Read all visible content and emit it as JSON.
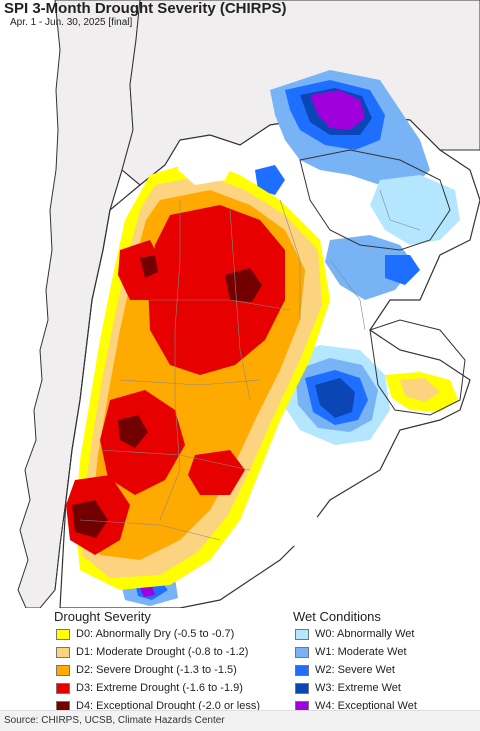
{
  "header": {
    "title": "SPI 3-Month Drought Severity (CHIRPS)",
    "subtitle": "Apr. 1 - Jun. 30, 2025 [final]"
  },
  "legend": {
    "drought_heading": "Drought Severity",
    "wet_heading": "Wet Conditions",
    "drought_items": [
      {
        "label": "D0: Abnormally Dry (-0.5 to -0.7)",
        "color": "#ffff00"
      },
      {
        "label": "D1: Moderate Drought (-0.8 to -1.2)",
        "color": "#fcd37f"
      },
      {
        "label": "D2: Severe Drought (-1.3 to -1.5)",
        "color": "#ffaa00"
      },
      {
        "label": "D3: Extreme Drought (-1.6 to -1.9)",
        "color": "#e60000"
      },
      {
        "label": "D4: Exceptional Drought (-2.0 or less)",
        "color": "#730000"
      }
    ],
    "wet_items": [
      {
        "label": "W0: Abnormally Wet",
        "color": "#b4e6ff"
      },
      {
        "label": "W1: Moderate Wet",
        "color": "#78b4f5"
      },
      {
        "label": "W2: Severe Wet",
        "color": "#1e6eff"
      },
      {
        "label": "W3: Extreme Wet",
        "color": "#0a46b4"
      },
      {
        "label": "W4: Exceptional Wet",
        "color": "#a000dc"
      }
    ]
  },
  "footer": {
    "source": "Source: CHIRPS, UCSB, Climate Hazards Center"
  },
  "colors": {
    "ocean": "#ffffff",
    "outside_land": "#f0eeee",
    "country_border": "#333333",
    "state_border": "#888888"
  }
}
